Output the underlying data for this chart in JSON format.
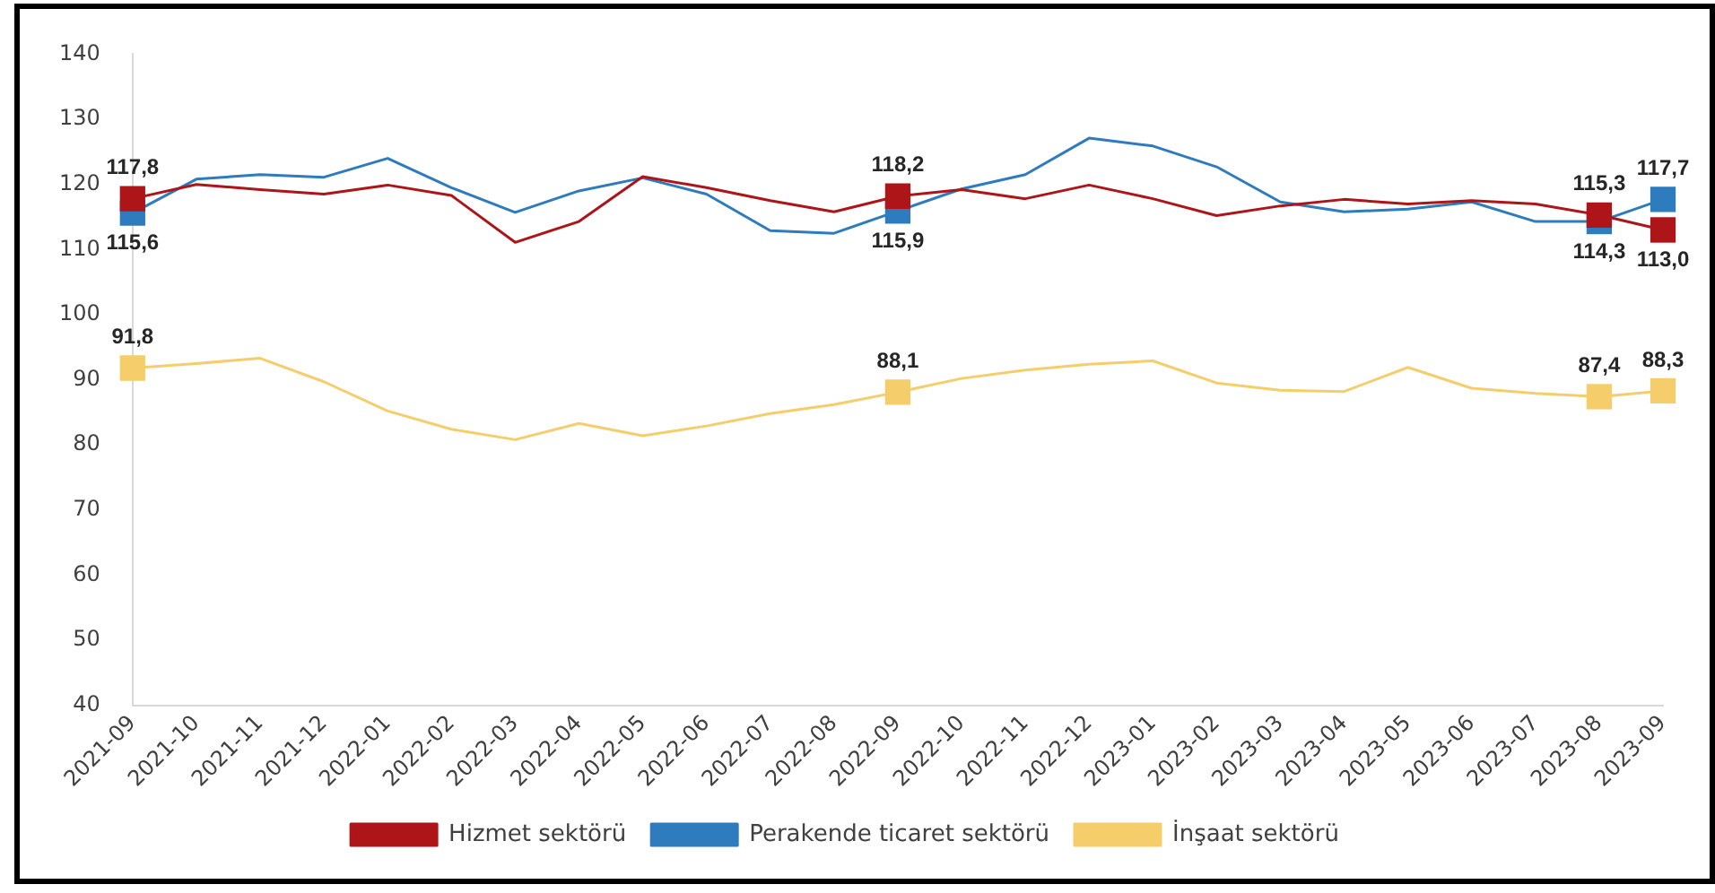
{
  "chart_data": {
    "type": "line",
    "categories": [
      "2021-09",
      "2021-10",
      "2021-11",
      "2021-12",
      "2022-01",
      "2022-02",
      "2022-03",
      "2022-04",
      "2022-05",
      "2022-06",
      "2022-07",
      "2022-08",
      "2022-09",
      "2022-10",
      "2022-11",
      "2022-12",
      "2023-01",
      "2023-02",
      "2023-03",
      "2023-04",
      "2023-05",
      "2023-06",
      "2023-07",
      "2023-08",
      "2023-09"
    ],
    "series": [
      {
        "name": "Hizmet sektörü",
        "color": "#ad1519",
        "values": [
          117.8,
          120.0,
          119.2,
          118.5,
          119.9,
          118.3,
          111.1,
          114.3,
          121.2,
          119.5,
          117.5,
          115.8,
          118.2,
          119.2,
          117.8,
          119.9,
          117.8,
          115.2,
          116.7,
          117.7,
          117.0,
          117.5,
          117.0,
          115.3,
          113.0
        ],
        "value_labels": [
          "117,8",
          null,
          null,
          null,
          null,
          null,
          null,
          null,
          null,
          null,
          null,
          null,
          "118,2",
          null,
          null,
          null,
          null,
          null,
          null,
          null,
          null,
          null,
          null,
          "115,3",
          "113,0"
        ]
      },
      {
        "name": "Perakende ticaret sektörü",
        "color": "#2e7bbd",
        "values": [
          115.6,
          120.8,
          121.5,
          121.1,
          124.0,
          119.5,
          115.7,
          119.0,
          121.0,
          118.5,
          112.9,
          112.5,
          115.9,
          119.3,
          121.5,
          127.1,
          125.9,
          122.7,
          117.3,
          115.8,
          116.2,
          117.3,
          114.3,
          114.3,
          117.7
        ],
        "value_labels": [
          "115,6",
          null,
          null,
          null,
          null,
          null,
          null,
          null,
          null,
          null,
          null,
          null,
          "115,9",
          null,
          null,
          null,
          null,
          null,
          null,
          null,
          null,
          null,
          null,
          "114,3",
          "117,7"
        ]
      },
      {
        "name": "İnşaat sektörü",
        "color": "#f5cd6b",
        "values": [
          91.8,
          92.5,
          93.3,
          89.7,
          85.2,
          82.4,
          80.8,
          83.3,
          81.4,
          82.9,
          84.8,
          86.2,
          88.1,
          90.2,
          91.5,
          92.4,
          92.9,
          89.5,
          88.4,
          88.2,
          91.9,
          88.7,
          87.9,
          87.4,
          88.3
        ],
        "value_labels": [
          "91,8",
          null,
          null,
          null,
          null,
          null,
          null,
          null,
          null,
          null,
          null,
          null,
          "88,1",
          null,
          null,
          null,
          null,
          null,
          null,
          null,
          null,
          null,
          null,
          "87,4",
          "88,3"
        ]
      }
    ],
    "ylim": [
      40,
      140
    ],
    "yticks": [
      40,
      50,
      60,
      70,
      80,
      90,
      100,
      110,
      120,
      130,
      140
    ],
    "grid": false,
    "legend": "bottom",
    "line_style": "solid"
  }
}
